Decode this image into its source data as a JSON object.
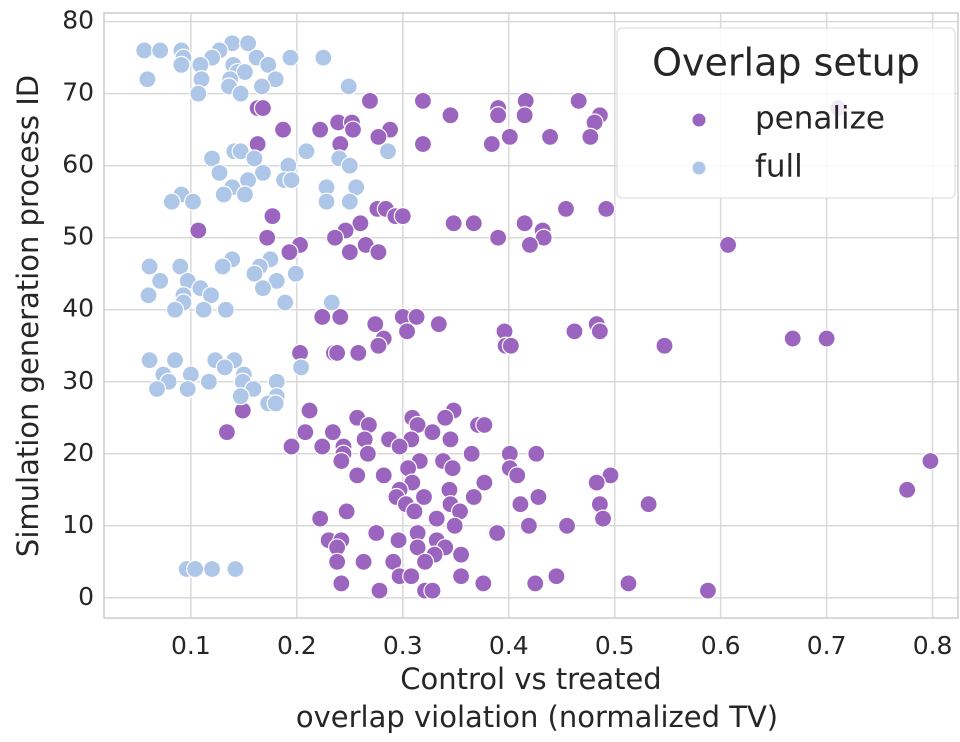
{
  "chart_data": {
    "type": "scatter",
    "xlabel": [
      "Control vs treated",
      "overlap violation (normalized TV)"
    ],
    "ylabel": "Simulation generation process ID",
    "xlim": [
      0.018,
      0.824
    ],
    "ylim": [
      -2.8,
      81.2
    ],
    "xticks": [
      0.1,
      0.2,
      0.3,
      0.4,
      0.5,
      0.6,
      0.7,
      0.8
    ],
    "yticks": [
      0,
      10,
      20,
      30,
      40,
      50,
      60,
      70,
      80
    ],
    "grid": true,
    "legend": {
      "title": "Overlap setup",
      "position": "upper right"
    },
    "series": [
      {
        "name": "penalize",
        "color": "#9b64bf",
        "x": [
          0.269,
          0.319,
          0.466,
          0.416,
          0.163,
          0.168,
          0.39,
          0.711,
          0.345,
          0.39,
          0.415,
          0.486,
          0.239,
          0.252,
          0.481,
          0.187,
          0.222,
          0.253,
          0.288,
          0.277,
          0.401,
          0.439,
          0.477,
          0.163,
          0.241,
          0.319,
          0.384,
          0.276,
          0.284,
          0.454,
          0.492,
          0.177,
          0.293,
          0.3,
          0.26,
          0.348,
          0.367,
          0.415,
          0.107,
          0.246,
          0.432,
          0.172,
          0.236,
          0.39,
          0.433,
          0.203,
          0.265,
          0.42,
          0.607,
          0.193,
          0.25,
          0.277,
          0.224,
          0.241,
          0.3,
          0.313,
          0.274,
          0.334,
          0.483,
          0.304,
          0.396,
          0.462,
          0.486,
          0.282,
          0.668,
          0.7,
          0.277,
          0.397,
          0.402,
          0.547,
          0.203,
          0.235,
          0.238,
          0.258,
          0.149,
          0.212,
          0.348,
          0.257,
          0.309,
          0.34,
          0.268,
          0.314,
          0.371,
          0.377,
          0.134,
          0.208,
          0.234,
          0.328,
          0.264,
          0.287,
          0.308,
          0.345,
          0.195,
          0.224,
          0.244,
          0.297,
          0.244,
          0.267,
          0.365,
          0.401,
          0.426,
          0.242,
          0.316,
          0.338,
          0.798,
          0.305,
          0.347,
          0.401,
          0.257,
          0.282,
          0.408,
          0.496,
          0.309,
          0.377,
          0.483,
          0.297,
          0.344,
          0.776,
          0.294,
          0.32,
          0.367,
          0.428,
          0.303,
          0.345,
          0.411,
          0.486,
          0.532,
          0.247,
          0.311,
          0.354,
          0.222,
          0.332,
          0.489,
          0.349,
          0.419,
          0.455,
          0.275,
          0.314,
          0.389,
          0.23,
          0.242,
          0.296,
          0.332,
          0.238,
          0.314,
          0.34,
          0.33,
          0.355,
          0.238,
          0.263,
          0.291,
          0.321,
          0.297,
          0.308,
          0.355,
          0.445,
          0.242,
          0.376,
          0.425,
          0.513,
          0.278,
          0.321,
          0.328,
          0.588
        ],
        "y": [
          69,
          69,
          69,
          69,
          68,
          68,
          68,
          68,
          67,
          67,
          67,
          67,
          66,
          66,
          66,
          65,
          65,
          65,
          65,
          64,
          64,
          64,
          64,
          63,
          63,
          63,
          63,
          54,
          54,
          54,
          54,
          53,
          53,
          53,
          52,
          52,
          52,
          52,
          51,
          51,
          51,
          50,
          50,
          50,
          50,
          49,
          49,
          49,
          49,
          48,
          48,
          48,
          39,
          39,
          39,
          39,
          38,
          38,
          38,
          37,
          37,
          37,
          37,
          36,
          36,
          36,
          35,
          35,
          35,
          35,
          34,
          34,
          34,
          34,
          26,
          26,
          26,
          25,
          25,
          25,
          24,
          24,
          24,
          24,
          23,
          23,
          23,
          23,
          22,
          22,
          22,
          22,
          21,
          21,
          21,
          21,
          20,
          20,
          20,
          20,
          20,
          19,
          19,
          19,
          19,
          18,
          18,
          18,
          17,
          17,
          17,
          17,
          16,
          16,
          16,
          15,
          15,
          15,
          14,
          14,
          14,
          14,
          13,
          13,
          13,
          13,
          13,
          12,
          12,
          12,
          11,
          11,
          11,
          10,
          10,
          10,
          9,
          9,
          9,
          8,
          8,
          8,
          8,
          7,
          7,
          7,
          6,
          6,
          5,
          5,
          5,
          5,
          3,
          3,
          3,
          3,
          2,
          2,
          2,
          2,
          1,
          1,
          1,
          1
        ]
      },
      {
        "name": "full",
        "color": "#aec7e8",
        "x": [
          0.139,
          0.154,
          0.056,
          0.071,
          0.091,
          0.127,
          0.093,
          0.12,
          0.162,
          0.194,
          0.225,
          0.091,
          0.109,
          0.14,
          0.173,
          0.144,
          0.151,
          0.059,
          0.11,
          0.137,
          0.18,
          0.136,
          0.167,
          0.249,
          0.107,
          0.147,
          0.141,
          0.147,
          0.209,
          0.286,
          0.12,
          0.16,
          0.24,
          0.192,
          0.25,
          0.127,
          0.168,
          0.154,
          0.188,
          0.195,
          0.139,
          0.228,
          0.256,
          0.091,
          0.151,
          0.131,
          0.082,
          0.102,
          0.228,
          0.25,
          0.139,
          0.175,
          0.061,
          0.09,
          0.13,
          0.165,
          0.16,
          0.199,
          0.071,
          0.097,
          0.181,
          0.109,
          0.168,
          0.06,
          0.119,
          0.093,
          0.093,
          0.189,
          0.233,
          0.085,
          0.112,
          0.133,
          0.061,
          0.085,
          0.123,
          0.141,
          0.132,
          0.204,
          0.074,
          0.1,
          0.15,
          0.079,
          0.117,
          0.149,
          0.181,
          0.068,
          0.097,
          0.159,
          0.147,
          0.181,
          0.173,
          0.18,
          0.096,
          0.104,
          0.12,
          0.142
        ],
        "y": [
          77,
          77,
          76,
          76,
          76,
          76,
          75,
          75,
          75,
          75,
          75,
          74,
          74,
          74,
          74,
          73,
          73,
          72,
          72,
          72,
          72,
          71,
          71,
          71,
          70,
          70,
          62,
          62,
          62,
          62,
          61,
          61,
          61,
          60,
          60,
          59,
          59,
          58,
          58,
          58,
          57,
          57,
          57,
          56,
          56,
          56,
          55,
          55,
          55,
          55,
          47,
          47,
          46,
          46,
          46,
          46,
          45,
          45,
          44,
          44,
          44,
          43,
          43,
          42,
          42,
          42,
          41,
          41,
          41,
          40,
          40,
          40,
          33,
          33,
          33,
          33,
          32,
          32,
          31,
          31,
          31,
          30,
          30,
          30,
          30,
          29,
          29,
          29,
          28,
          28,
          27,
          27,
          4,
          4,
          4,
          4
        ]
      }
    ]
  }
}
